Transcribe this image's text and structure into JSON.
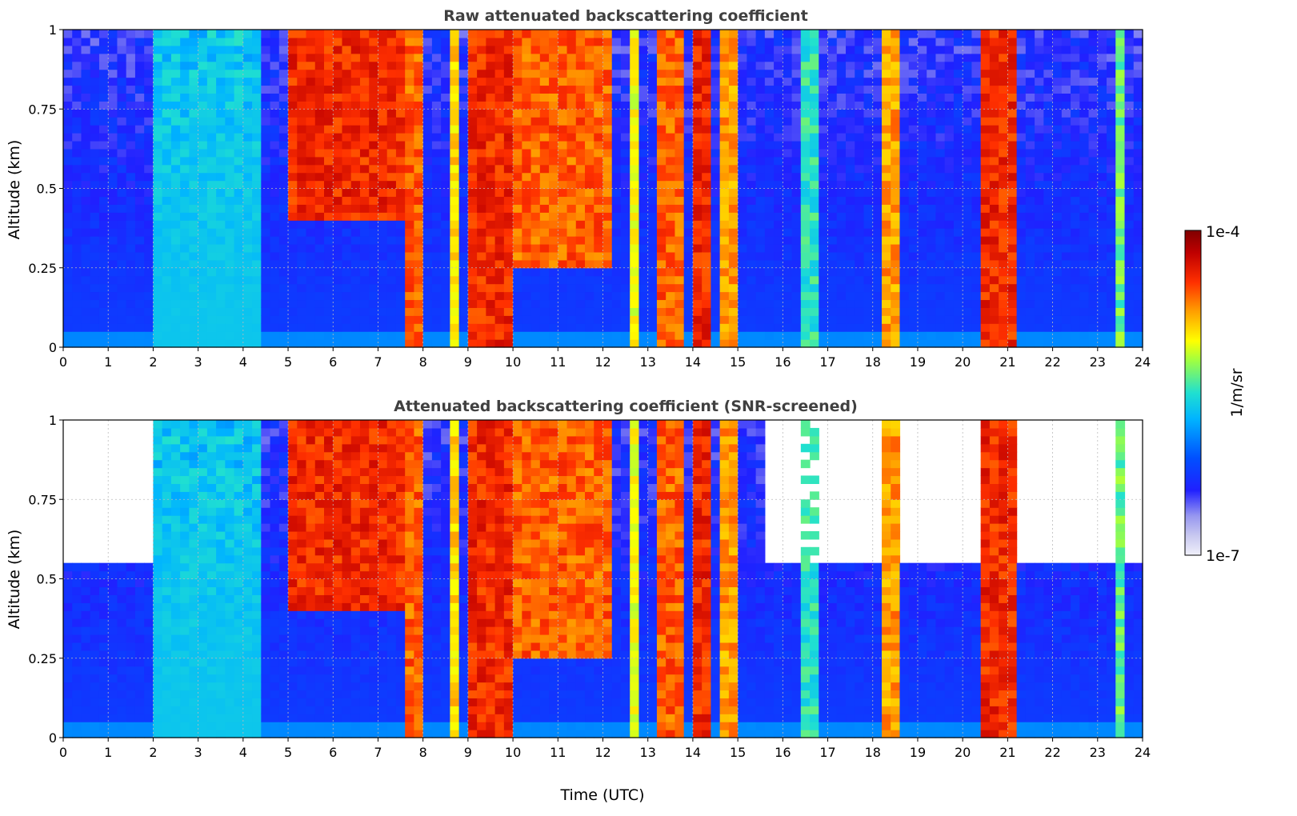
{
  "chart_data": [
    {
      "type": "heatmap",
      "title": "Raw attenuated backscattering coefficient",
      "xlabel": "",
      "ylabel": "Altitude (km)",
      "xlim": [
        0,
        24
      ],
      "ylim": [
        0,
        1
      ],
      "x_ticks": [
        "0",
        "1",
        "2",
        "3",
        "4",
        "5",
        "6",
        "7",
        "8",
        "9",
        "10",
        "11",
        "12",
        "13",
        "14",
        "15",
        "16",
        "17",
        "18",
        "19",
        "20",
        "21",
        "22",
        "23",
        "24"
      ],
      "y_ticks": [
        "0",
        "0.25",
        "0.5",
        "0.75",
        "1"
      ],
      "grid": true,
      "color_scale": "log",
      "cloud_events": [
        {
          "start": 2.6,
          "end": 2.85,
          "base": 0.0,
          "top": 1.0,
          "level": 0.45
        },
        {
          "start": 3.4,
          "end": 3.9,
          "base": 0.0,
          "top": 1.0,
          "level": 0.35
        },
        {
          "start": 4.1,
          "end": 4.25,
          "base": 0.0,
          "top": 1.0,
          "level": 0.42
        },
        {
          "start": 5.0,
          "end": 7.6,
          "base": 0.4,
          "top": 1.0,
          "level": 0.9
        },
        {
          "start": 7.6,
          "end": 8.1,
          "base": 0.0,
          "top": 1.0,
          "level": 0.85
        },
        {
          "start": 8.6,
          "end": 8.8,
          "base": 0.0,
          "top": 1.0,
          "level": 0.75
        },
        {
          "start": 9.0,
          "end": 10.0,
          "base": 0.0,
          "top": 1.0,
          "level": 0.9
        },
        {
          "start": 10.0,
          "end": 12.2,
          "base": 0.25,
          "top": 1.0,
          "level": 0.85
        },
        {
          "start": 12.7,
          "end": 12.85,
          "base": 0.0,
          "top": 1.0,
          "level": 0.7
        },
        {
          "start": 13.3,
          "end": 13.7,
          "base": 0.0,
          "top": 1.0,
          "level": 0.85
        },
        {
          "start": 14.0,
          "end": 14.3,
          "base": 0.0,
          "top": 1.0,
          "level": 0.9
        },
        {
          "start": 14.6,
          "end": 14.9,
          "base": 0.0,
          "top": 1.0,
          "level": 0.8
        },
        {
          "start": 16.5,
          "end": 16.7,
          "base": 0.0,
          "top": 1.0,
          "level": 0.55
        },
        {
          "start": 18.2,
          "end": 18.5,
          "base": 0.0,
          "top": 1.0,
          "level": 0.8
        },
        {
          "start": 20.5,
          "end": 21.2,
          "base": 0.0,
          "top": 1.0,
          "level": 0.9
        },
        {
          "start": 23.4,
          "end": 23.6,
          "base": 0.0,
          "top": 1.0,
          "level": 0.6
        }
      ]
    },
    {
      "type": "heatmap",
      "title": "Attenuated backscattering coefficient (SNR-screened)",
      "xlabel": "Time (UTC)",
      "ylabel": "Altitude (km)",
      "xlim": [
        0,
        24
      ],
      "ylim": [
        0,
        1
      ],
      "x_ticks": [
        "0",
        "1",
        "2",
        "3",
        "4",
        "5",
        "6",
        "7",
        "8",
        "9",
        "10",
        "11",
        "12",
        "13",
        "14",
        "15",
        "16",
        "17",
        "18",
        "19",
        "20",
        "21",
        "22",
        "23",
        "24"
      ],
      "y_ticks": [
        "0",
        "0.25",
        "0.5",
        "0.75",
        "1"
      ],
      "grid": true,
      "color_scale": "log",
      "screened": true
    }
  ],
  "colorbar": {
    "label": "1/m/sr",
    "max_label": "1e-4",
    "min_label": "1e-7",
    "colors": [
      "#f0f0fa",
      "#c8c8f0",
      "#9898f0",
      "#2020ff",
      "#0050ff",
      "#00b4ff",
      "#20e0d0",
      "#a0ff40",
      "#ffff00",
      "#ffa000",
      "#ff3000",
      "#c00000",
      "#800000"
    ]
  }
}
